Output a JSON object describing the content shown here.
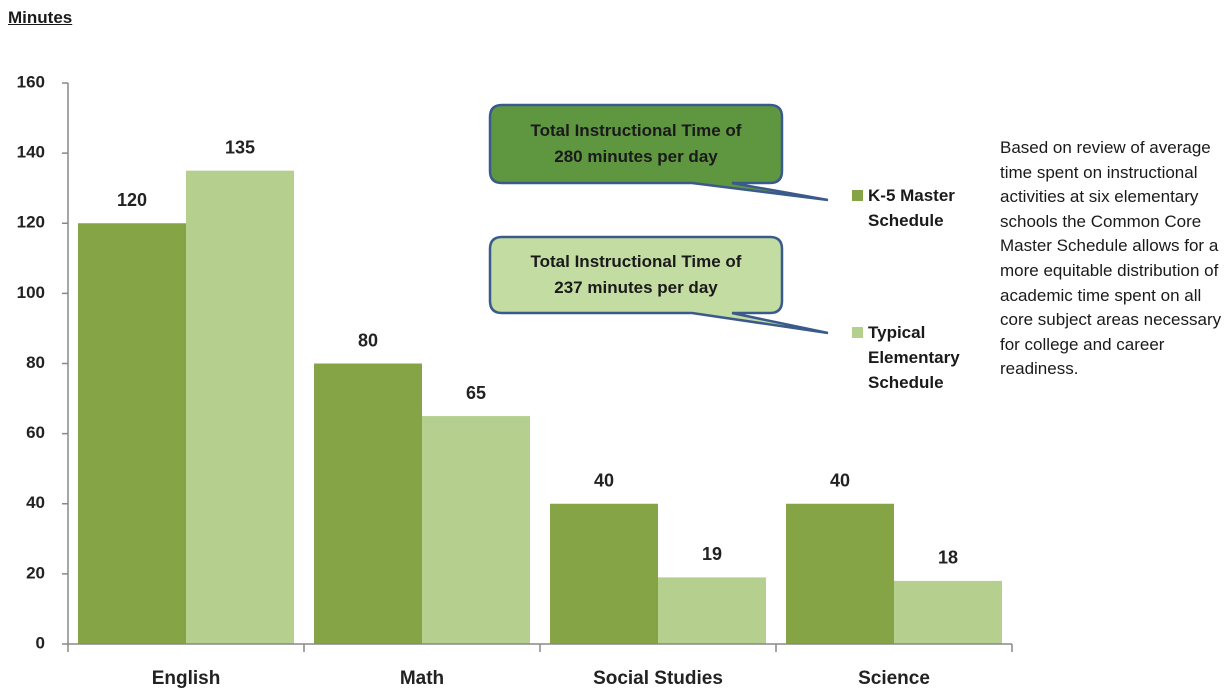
{
  "chart_data": {
    "type": "bar",
    "y_axis_label": "Minutes",
    "categories": [
      "English",
      "Math",
      "Social Studies",
      "Science"
    ],
    "series": [
      {
        "name": "K-5 Master Schedule",
        "color": "#84a446",
        "values": [
          120,
          80,
          40,
          40
        ]
      },
      {
        "name": "Typical Elementary Schedule",
        "color": "#b5cf8e",
        "values": [
          135,
          65,
          19,
          18
        ]
      }
    ],
    "ylim": [
      0,
      160
    ],
    "yticks": [
      0,
      20,
      40,
      60,
      80,
      100,
      120,
      140,
      160
    ],
    "annotations": [
      {
        "text": "Total Instructional Time of 280 minutes per day",
        "color": "#5f9640"
      },
      {
        "text": "Total Instructional Time of 237 minutes per day",
        "color": "#c3dca2"
      }
    ],
    "note": "Based on review of average time spent on instructional activities at six elementary schools the Common Core Master Schedule allows for a more equitable distribution of academic time spent on all core subject areas necessary for college and career readiness."
  }
}
